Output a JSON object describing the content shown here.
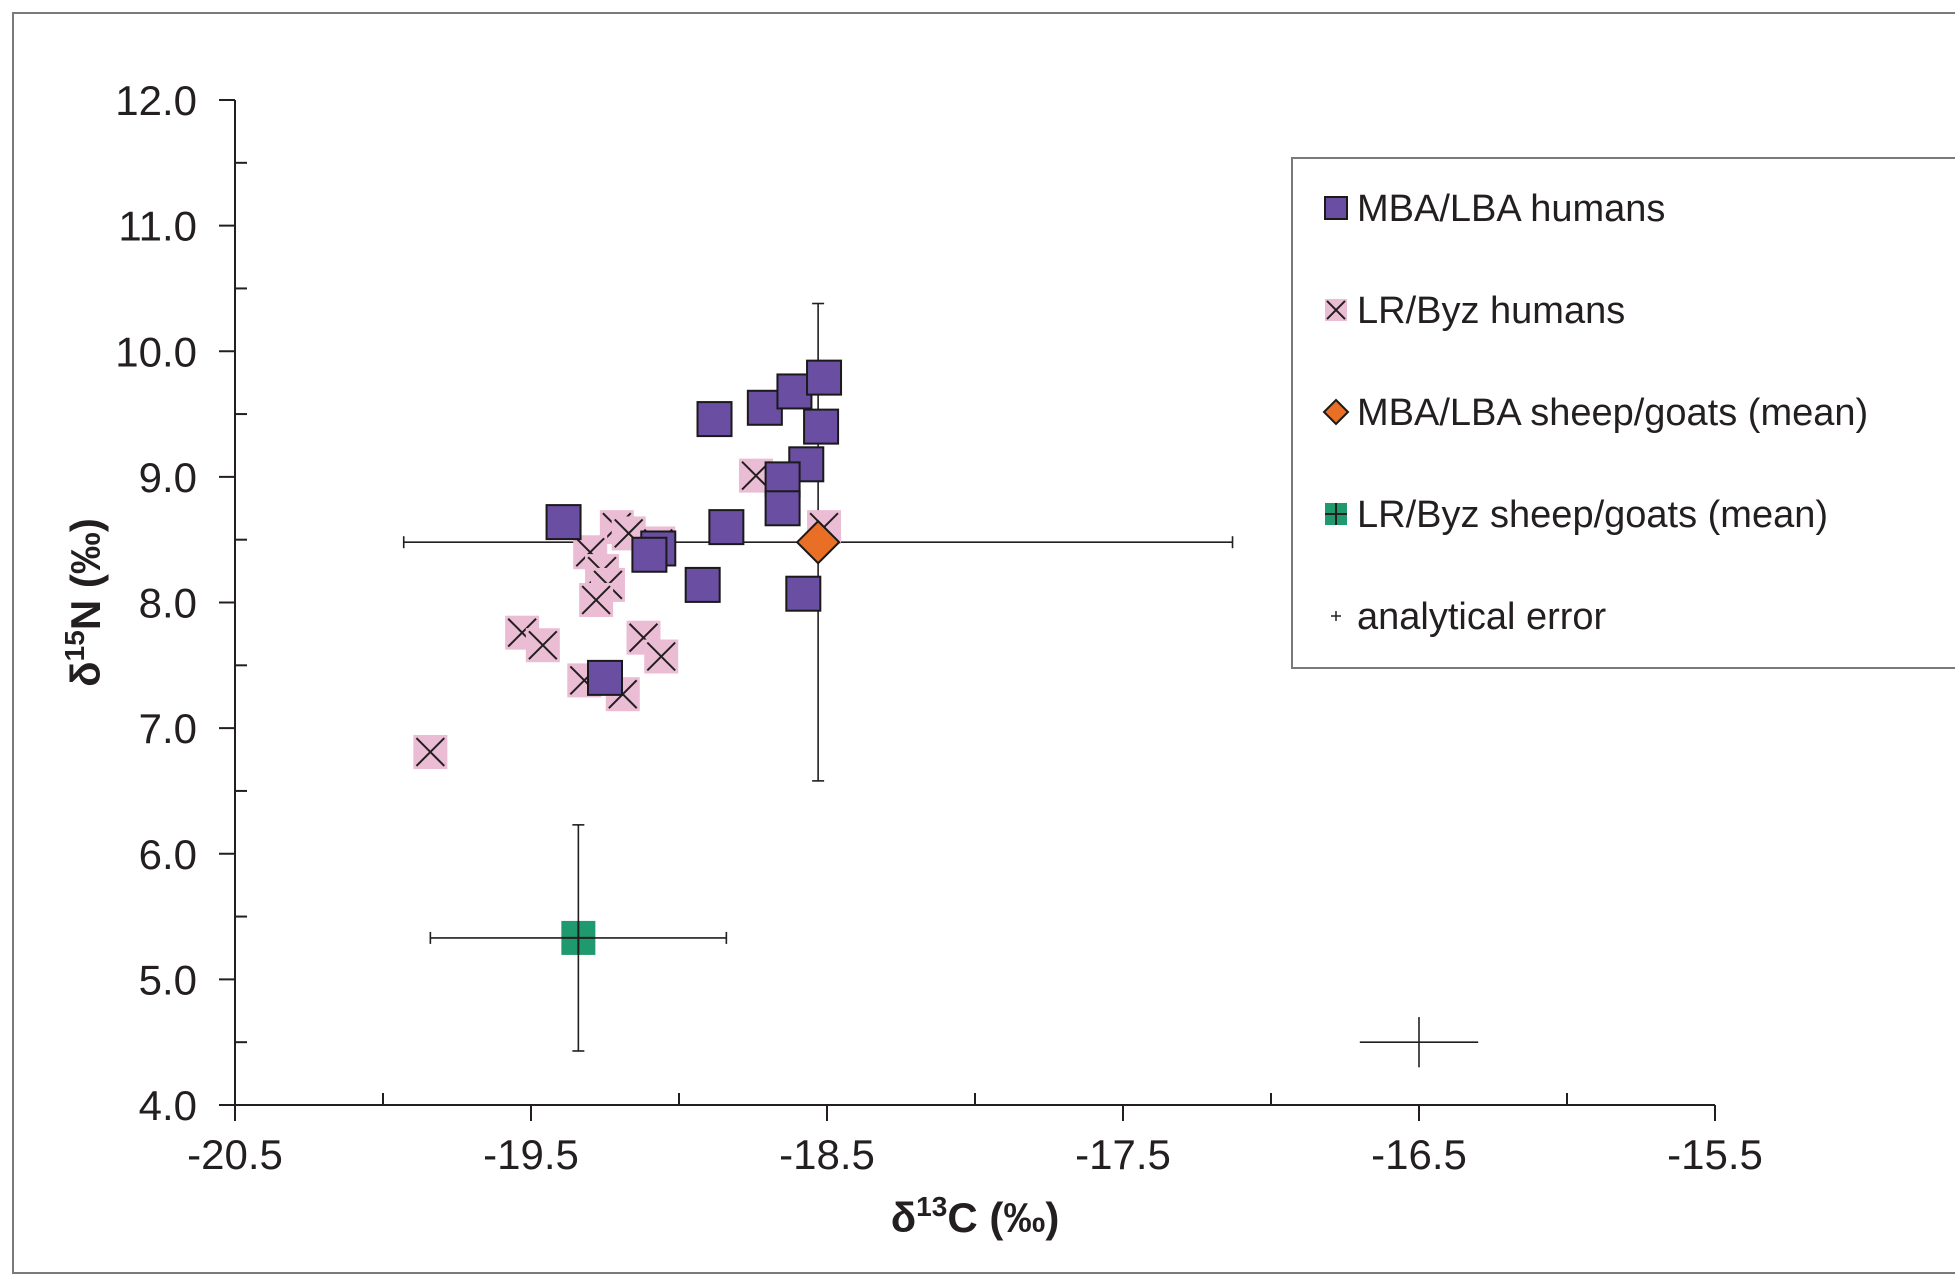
{
  "chart_data": {
    "type": "scatter",
    "xlabel": {
      "main": "δ",
      "sup": "13",
      "rest": "C (‰)"
    },
    "ylabel": {
      "main": "δ",
      "sup": "15",
      "rest": "N (‰)"
    },
    "xlim": [
      -20.5,
      -15.5
    ],
    "ylim": [
      4.0,
      12.0
    ],
    "x_ticks": [
      -20.5,
      -19.5,
      -18.5,
      -17.5,
      -16.5,
      -15.5
    ],
    "x_tick_labels": [
      "-20.5",
      "-19.5",
      "-18.5",
      "-17.5",
      "-16.5",
      "-15.5"
    ],
    "y_ticks": [
      4.0,
      5.0,
      6.0,
      7.0,
      8.0,
      9.0,
      10.0,
      11.0,
      12.0
    ],
    "y_tick_labels": [
      "4.0",
      "5.0",
      "6.0",
      "7.0",
      "8.0",
      "9.0",
      "10.0",
      "11.0",
      "12.0"
    ],
    "grid": false,
    "legend_position": "top-right",
    "series": [
      {
        "name": "MBA/LBA humans",
        "marker": "square",
        "color": "#6a4ea1",
        "points": [
          [
            -19.39,
            8.64
          ],
          [
            -18.88,
            9.46
          ],
          [
            -18.71,
            9.55
          ],
          [
            -18.61,
            9.68
          ],
          [
            -18.51,
            9.79
          ],
          [
            -18.52,
            9.4
          ],
          [
            -18.57,
            9.1
          ],
          [
            -18.65,
            8.98
          ],
          [
            -18.65,
            8.75
          ],
          [
            -18.84,
            8.6
          ],
          [
            -19.07,
            8.43
          ],
          [
            -19.1,
            8.38
          ],
          [
            -18.92,
            8.14
          ],
          [
            -18.58,
            8.07
          ],
          [
            -19.25,
            7.4
          ]
        ]
      },
      {
        "name": "LR/Byz humans",
        "marker": "x-on-pink",
        "color": "#ebbdd5",
        "points": [
          [
            -19.84,
            6.81
          ],
          [
            -19.53,
            7.76
          ],
          [
            -19.46,
            7.66
          ],
          [
            -19.21,
            8.6
          ],
          [
            -19.17,
            8.55
          ],
          [
            -19.07,
            8.47
          ],
          [
            -19.3,
            8.4
          ],
          [
            -19.26,
            8.25
          ],
          [
            -19.24,
            8.14
          ],
          [
            -19.28,
            8.02
          ],
          [
            -19.12,
            7.72
          ],
          [
            -19.06,
            7.57
          ],
          [
            -19.32,
            7.38
          ],
          [
            -19.19,
            7.27
          ],
          [
            -18.74,
            9.01
          ],
          [
            -18.51,
            8.6
          ]
        ]
      },
      {
        "name": "MBA/LBA sheep/goats (mean)",
        "marker": "diamond",
        "color": "#e86f25",
        "points": [
          [
            -18.53,
            8.48
          ]
        ],
        "x_err": 1.4,
        "y_err": 1.9
      },
      {
        "name": "LR/Byz sheep/goats (mean)",
        "marker": "square-plus",
        "color": "#1e9a6e",
        "points": [
          [
            -19.34,
            5.33
          ]
        ],
        "x_err": 0.5,
        "y_err": 0.9
      },
      {
        "name": "analytical error",
        "marker": "cross",
        "color": "#231f20",
        "points": [
          [
            -16.5,
            4.5
          ]
        ],
        "x_err": 0.2,
        "y_err": 0.2
      }
    ]
  }
}
